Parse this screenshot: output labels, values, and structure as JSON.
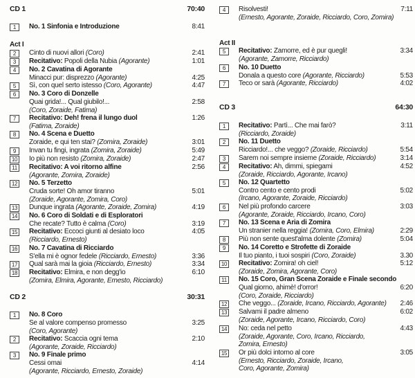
{
  "page": {
    "background": "#fdfdfc",
    "text_color": "#1c1c1c"
  },
  "columns": [
    {
      "side": "left",
      "items": [
        {
          "kind": "cd",
          "title": "CD 1",
          "time": "70:40"
        },
        {
          "kind": "line",
          "n": "1",
          "seg": [
            {
              "t": "No. 1 Sinfonia e Introduzione",
              "s": "b"
            }
          ],
          "time": "8:41"
        },
        {
          "kind": "act",
          "label": "Act I"
        },
        {
          "kind": "line",
          "n": "2",
          "seg": [
            {
              "t": "Cinto di nuovi allori ",
              "s": ""
            },
            {
              "t": "(Coro)",
              "s": "i"
            }
          ],
          "time": "2:41"
        },
        {
          "kind": "line",
          "n": "3",
          "seg": [
            {
              "t": "Recitativo:",
              "s": "b"
            },
            {
              "t": " Popoli della Nubia ",
              "s": ""
            },
            {
              "t": "(Agorante)",
              "s": "i"
            }
          ],
          "time": "1:01"
        },
        {
          "kind": "line",
          "n": "4",
          "seg": [
            {
              "t": "No. 2 Cavatina di Agorante",
              "s": "b"
            }
          ]
        },
        {
          "kind": "line",
          "seg": [
            {
              "t": "Minacci pur: disprezzo ",
              "s": ""
            },
            {
              "t": "(Agorante)",
              "s": "i"
            }
          ],
          "time": "4:25"
        },
        {
          "kind": "line",
          "n": "5",
          "seg": [
            {
              "t": "Sì, con quel serto istesso ",
              "s": ""
            },
            {
              "t": "(Coro, Agorante)",
              "s": "i"
            }
          ],
          "time": "4:47"
        },
        {
          "kind": "line",
          "n": "6",
          "seg": [
            {
              "t": "No. 3 Coro di Donzelle",
              "s": "b"
            }
          ]
        },
        {
          "kind": "line",
          "seg": [
            {
              "t": "Quai grida!... Qual giubilo!...",
              "s": ""
            }
          ],
          "time": "2:58"
        },
        {
          "kind": "line",
          "seg": [
            {
              "t": "(Coro, Zoraide, Fatima)",
              "s": "i"
            }
          ]
        },
        {
          "kind": "line",
          "n": "7",
          "seg": [
            {
              "t": "Recitativo: Deh! frena il lungo duol",
              "s": "b"
            }
          ],
          "time": "1:26"
        },
        {
          "kind": "line",
          "seg": [
            {
              "t": "(Fatima, Zoraide)",
              "s": "i"
            }
          ]
        },
        {
          "kind": "line",
          "n": "8",
          "seg": [
            {
              "t": "No. 4 Scena e Duetto",
              "s": "b"
            }
          ]
        },
        {
          "kind": "line",
          "seg": [
            {
              "t": "Zoraide, e qui ten stai? ",
              "s": ""
            },
            {
              "t": "(Zomira, Zoraide)",
              "s": "i"
            }
          ],
          "time": "3:01"
        },
        {
          "kind": "line",
          "n": "9",
          "seg": [
            {
              "t": "Invan tu fingi, ingrata ",
              "s": ""
            },
            {
              "t": "(Zomira, Zoraide)",
              "s": "i"
            }
          ],
          "time": "5:49"
        },
        {
          "kind": "line",
          "n": "10",
          "seg": [
            {
              "t": "Io più non resisto ",
              "s": ""
            },
            {
              "t": "(Zomira, Zoraide)",
              "s": "i"
            }
          ],
          "time": "2:47"
        },
        {
          "kind": "line",
          "n": "11",
          "seg": [
            {
              "t": "Recitativo: A voi ritorno alfine",
              "s": "b"
            }
          ],
          "time": "2:56"
        },
        {
          "kind": "line",
          "seg": [
            {
              "t": "(Agorante, Zomira, Zoraide)",
              "s": "i"
            }
          ]
        },
        {
          "kind": "line",
          "n": "12",
          "seg": [
            {
              "t": "No. 5 Terzetto",
              "s": "b"
            }
          ]
        },
        {
          "kind": "line",
          "seg": [
            {
              "t": "Cruda sorte! Oh amor tiranno",
              "s": ""
            }
          ],
          "time": "5:01"
        },
        {
          "kind": "line",
          "seg": [
            {
              "t": "(Zoraide, Agorante, Zomira, Coro)",
              "s": "i"
            }
          ]
        },
        {
          "kind": "line",
          "n": "13",
          "seg": [
            {
              "t": "Dunque ingrata ",
              "s": ""
            },
            {
              "t": "(Agorante, Zoraide, Zomira)",
              "s": "i"
            }
          ],
          "time": "4:19"
        },
        {
          "kind": "line",
          "n": "14",
          "seg": [
            {
              "t": "No. 6 Coro di Soldati e di Esploratori",
              "s": "b"
            }
          ]
        },
        {
          "kind": "line",
          "seg": [
            {
              "t": "Che recate? Tutto è calma ",
              "s": ""
            },
            {
              "t": "(Coro)",
              "s": "i"
            }
          ],
          "time": "3:19"
        },
        {
          "kind": "line",
          "n": "15",
          "seg": [
            {
              "t": "Recitativo:",
              "s": "b"
            },
            {
              "t": " Eccoci giunti al desiato loco",
              "s": ""
            }
          ],
          "time": "4:05"
        },
        {
          "kind": "line",
          "seg": [
            {
              "t": "(Ricciardo, Ernesto)",
              "s": "i"
            }
          ]
        },
        {
          "kind": "line",
          "n": "16",
          "seg": [
            {
              "t": "No. 7 Cavatina di Ricciardo",
              "s": "b"
            }
          ]
        },
        {
          "kind": "line",
          "seg": [
            {
              "t": "S'ella mi è ognor fedele ",
              "s": ""
            },
            {
              "t": "(Ricciardo, Ernesto)",
              "s": "i"
            }
          ],
          "time": "3:36"
        },
        {
          "kind": "line",
          "n": "17",
          "seg": [
            {
              "t": "Qual sarà mai la gioia ",
              "s": ""
            },
            {
              "t": "(Ricciardo, Ernesto)",
              "s": "i"
            }
          ],
          "time": "3:34"
        },
        {
          "kind": "line",
          "n": "18",
          "seg": [
            {
              "t": "Recitativo:",
              "s": "b"
            },
            {
              "t": " Elmira, e non degg'io",
              "s": ""
            }
          ],
          "time": "6:10"
        },
        {
          "kind": "line",
          "seg": [
            {
              "t": "(Zomira, Elmira, Agorante, Ernesto, Ricciardo)",
              "s": "i"
            }
          ]
        },
        {
          "kind": "cd",
          "title": "CD 2",
          "time": "30:31"
        },
        {
          "kind": "line",
          "n": "1",
          "seg": [
            {
              "t": "No. 8 Coro",
              "s": "b"
            }
          ]
        },
        {
          "kind": "line",
          "seg": [
            {
              "t": "Se al valore compenso promesso",
              "s": ""
            }
          ],
          "time": "3:25"
        },
        {
          "kind": "line",
          "seg": [
            {
              "t": "(Coro, Agorante)",
              "s": "i"
            }
          ]
        },
        {
          "kind": "line",
          "n": "2",
          "seg": [
            {
              "t": "Recitativo:",
              "s": "b"
            },
            {
              "t": " Scaccia ogni tema",
              "s": ""
            }
          ],
          "time": "2:10"
        },
        {
          "kind": "line",
          "seg": [
            {
              "t": "(Agorante, Zoraide, Ricciardo)",
              "s": "i"
            }
          ]
        },
        {
          "kind": "line",
          "n": "3",
          "seg": [
            {
              "t": "No. 9 Finale primo",
              "s": "b"
            }
          ]
        },
        {
          "kind": "line",
          "seg": [
            {
              "t": "Cessi omai",
              "s": ""
            }
          ],
          "time": "4:14"
        },
        {
          "kind": "line",
          "seg": [
            {
              "t": "(Agorante, Ricciardo, Ernesto, Zoraide)",
              "s": "i"
            }
          ]
        }
      ]
    },
    {
      "side": "right",
      "items": [
        {
          "kind": "line",
          "n": "4",
          "seg": [
            {
              "t": "Risolvesti!",
              "s": ""
            }
          ],
          "time": "7:11"
        },
        {
          "kind": "line",
          "seg": [
            {
              "t": "(Ernesto, Agorante, Zoraide, Ricciardo, Coro, Zomira)",
              "s": "i"
            }
          ]
        },
        {
          "kind": "spacer"
        },
        {
          "kind": "act",
          "label": "Act II"
        },
        {
          "kind": "line",
          "n": "5",
          "seg": [
            {
              "t": "Recitativo:",
              "s": "b"
            },
            {
              "t": " Zamorre, ed è pur quegli!",
              "s": ""
            }
          ],
          "time": "3:34"
        },
        {
          "kind": "line",
          "seg": [
            {
              "t": "(Agorante, Zamorre, Ricciardo)",
              "s": "i"
            }
          ]
        },
        {
          "kind": "line",
          "n": "6",
          "seg": [
            {
              "t": "No. 10 Duetto",
              "s": "b"
            }
          ]
        },
        {
          "kind": "line",
          "seg": [
            {
              "t": "Donala a questo core ",
              "s": ""
            },
            {
              "t": "(Agorante, Ricciardo)",
              "s": "i"
            }
          ],
          "time": "5:53"
        },
        {
          "kind": "line",
          "n": "7",
          "seg": [
            {
              "t": "Teco or sarà ",
              "s": ""
            },
            {
              "t": "(Agorante, Ricciardo)",
              "s": "i"
            }
          ],
          "time": "4:02"
        },
        {
          "kind": "spacer"
        },
        {
          "kind": "cd",
          "title": "CD 3",
          "time": "64:30"
        },
        {
          "kind": "line",
          "n": "1",
          "seg": [
            {
              "t": "Recitativo:",
              "s": "b"
            },
            {
              "t": " Partì... Che mai farò?",
              "s": ""
            }
          ],
          "time": "3:11"
        },
        {
          "kind": "line",
          "seg": [
            {
              "t": "(Ricciardo, Zoraide)",
              "s": "i"
            }
          ]
        },
        {
          "kind": "line",
          "n": "2",
          "seg": [
            {
              "t": "No. 11 Duetto",
              "s": "b"
            }
          ]
        },
        {
          "kind": "line",
          "seg": [
            {
              "t": "Ricciardo!... che veggo? ",
              "s": ""
            },
            {
              "t": "(Zoraide, Ricciardo)",
              "s": "i"
            }
          ],
          "time": "5:54"
        },
        {
          "kind": "line",
          "n": "3",
          "seg": [
            {
              "t": "Sarem noi sempre insieme ",
              "s": ""
            },
            {
              "t": "(Zoraide, Ricciardo)",
              "s": "i"
            }
          ],
          "time": "3:14"
        },
        {
          "kind": "line",
          "n": "4",
          "seg": [
            {
              "t": "Recitativo:",
              "s": "b"
            },
            {
              "t": " Ah, dimmi, spiegami",
              "s": ""
            }
          ],
          "time": "4:52"
        },
        {
          "kind": "line",
          "seg": [
            {
              "t": "(Zoraide, Ricciardo, Agorante, Ircano)",
              "s": "i"
            }
          ]
        },
        {
          "kind": "line",
          "n": "5",
          "seg": [
            {
              "t": "No. 12 Quartetto",
              "s": "b"
            }
          ]
        },
        {
          "kind": "line",
          "seg": [
            {
              "t": "Contro cento e cento prodi",
              "s": ""
            }
          ],
          "time": "5:02"
        },
        {
          "kind": "line",
          "seg": [
            {
              "t": "(Ircano, Agorante, Zoraide, Ricciardo)",
              "s": "i"
            }
          ]
        },
        {
          "kind": "line",
          "n": "6",
          "seg": [
            {
              "t": "Nel più profondo carcere",
              "s": ""
            }
          ],
          "time": "3:03"
        },
        {
          "kind": "line",
          "seg": [
            {
              "t": "(Agorante, Zoraide, Ricciardo, Ircano, Coro)",
              "s": "i"
            }
          ]
        },
        {
          "kind": "line",
          "n": "7",
          "seg": [
            {
              "t": "No. 13 Scena e Aria di Zomira",
              "s": "b"
            }
          ]
        },
        {
          "kind": "line",
          "seg": [
            {
              "t": "Un stranier nella reggia! ",
              "s": ""
            },
            {
              "t": "(Zomira, Coro, Elmira)",
              "s": "i"
            }
          ],
          "time": "2:29"
        },
        {
          "kind": "line",
          "n": "8",
          "seg": [
            {
              "t": "Più non sente quest'alma dolente ",
              "s": ""
            },
            {
              "t": "(Zomira)",
              "s": "i"
            }
          ],
          "time": "5:04"
        },
        {
          "kind": "line",
          "n": "9",
          "seg": [
            {
              "t": "No. 14 Coretto e Strofette di Zoraide",
              "s": "b"
            }
          ]
        },
        {
          "kind": "line",
          "seg": [
            {
              "t": "Il tuo pianto, i tuoi sospiri ",
              "s": ""
            },
            {
              "t": "(Coro, Zoraide)",
              "s": "i"
            }
          ],
          "time": "3.30"
        },
        {
          "kind": "line",
          "n": "10",
          "seg": [
            {
              "t": "Recitativo:",
              "s": "b"
            },
            {
              "t": " Zomira! oh ciel!",
              "s": ""
            }
          ],
          "time": "5:12"
        },
        {
          "kind": "line",
          "seg": [
            {
              "t": "(Zoraide, Zomira, Agorante, Coro)",
              "s": "i"
            }
          ]
        },
        {
          "kind": "line",
          "n": "11",
          "seg": [
            {
              "t": "No. 15 Coro, Gran Scena Zoraide e Finale secondo",
              "s": "b"
            }
          ]
        },
        {
          "kind": "line",
          "seg": [
            {
              "t": "Qual giorno, ahimè! d'orror!",
              "s": ""
            }
          ],
          "time": "6:20"
        },
        {
          "kind": "line",
          "seg": [
            {
              "t": "(Coro, Zoraide, Ricciardo)",
              "s": "i"
            }
          ]
        },
        {
          "kind": "line",
          "n": "12",
          "seg": [
            {
              "t": "Che veggo... ",
              "s": ""
            },
            {
              "t": "(Zoraide, Ircano, Ricciardo, Agorante)",
              "s": "i"
            }
          ],
          "time": "2:46"
        },
        {
          "kind": "line",
          "n": "13",
          "seg": [
            {
              "t": "Salvami il padre almeno",
              "s": ""
            }
          ],
          "time": "6:02"
        },
        {
          "kind": "line",
          "seg": [
            {
              "t": "(Zoraide, Agorante, Ircano, Ricciardo, Coro)",
              "s": "i"
            }
          ]
        },
        {
          "kind": "line",
          "n": "14",
          "seg": [
            {
              "t": "No: ceda nel petto",
              "s": ""
            }
          ],
          "time": "4:43"
        },
        {
          "kind": "line",
          "seg": [
            {
              "t": "(Zoraide, Agorante, Coro, Ircano, Ricciardo,",
              "s": "i"
            }
          ]
        },
        {
          "kind": "line",
          "seg": [
            {
              "t": "Zomira, Ernesto)",
              "s": "i"
            }
          ]
        },
        {
          "kind": "line",
          "n": "15",
          "seg": [
            {
              "t": "Or più dolci intorno al core",
              "s": ""
            }
          ],
          "time": "3:05"
        },
        {
          "kind": "line",
          "seg": [
            {
              "t": "(Ernesto, Ricciardo, Zoraide, Ircano,",
              "s": "i"
            }
          ]
        },
        {
          "kind": "line",
          "seg": [
            {
              "t": "Coro, Agorante, Zomira)",
              "s": "i"
            }
          ]
        }
      ]
    }
  ]
}
